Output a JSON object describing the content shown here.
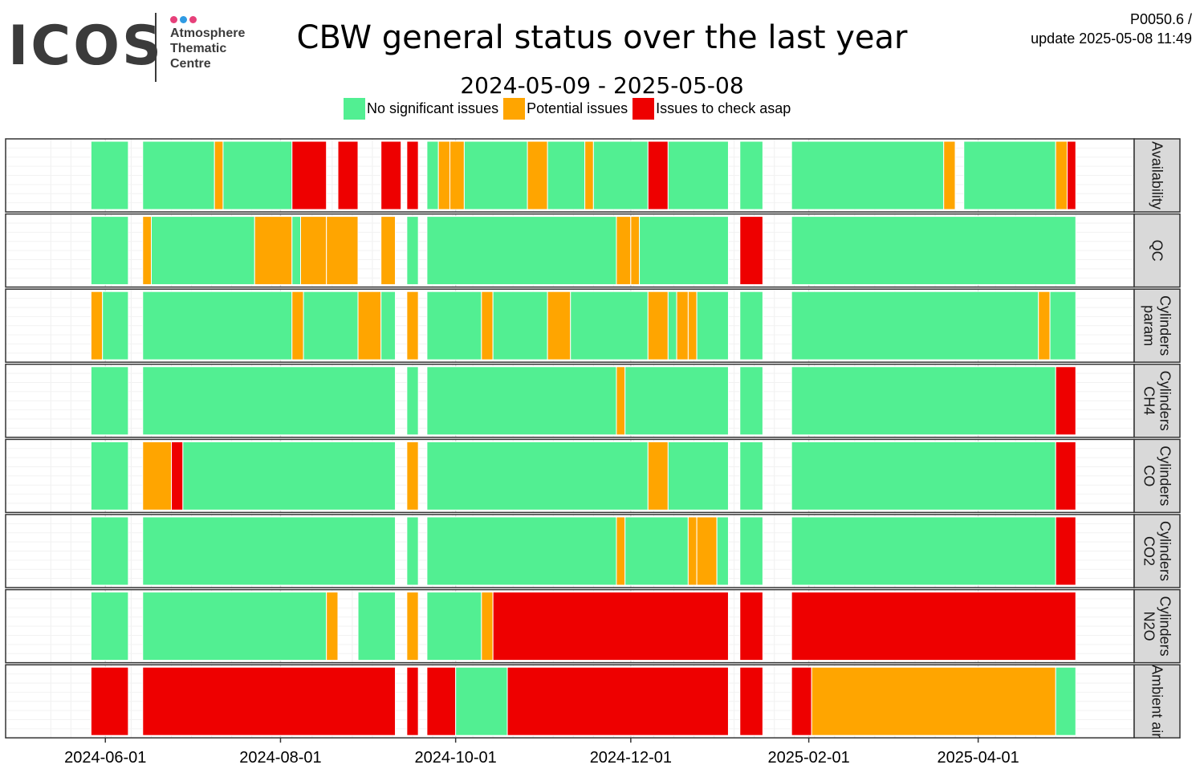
{
  "header": {
    "logo": {
      "word": "ICOS",
      "subtitle_lines": [
        "Atmosphere",
        "Thematic",
        "Centre"
      ],
      "dot_colors": [
        "#e6407a",
        "#2f9be3",
        "#e6407a"
      ]
    },
    "title": "CBW general status over the last year",
    "subtitle": "2024-05-09 - 2025-05-08",
    "version_line": "P0050.6 /",
    "update_line": "update  2025-05-08 11:49"
  },
  "chart_data": {
    "type": "heatmap",
    "title": "CBW general status over the last year",
    "subtitle": "2024-05-09 - 2025-05-08",
    "x_range": [
      "2024-05-09",
      "2025-05-08"
    ],
    "x_ticks": [
      "2024-06-01",
      "2024-08-01",
      "2024-10-01",
      "2024-12-01",
      "2025-02-01",
      "2025-04-01"
    ],
    "legend": {
      "placement": "top",
      "items": [
        {
          "key": "G",
          "label": "No significant issues",
          "color": "#52ef92"
        },
        {
          "key": "O",
          "label": "Potential issues",
          "color": "#ffa500"
        },
        {
          "key": "R",
          "label": "Issues to check asap",
          "color": "#ee0000"
        }
      ]
    },
    "facets": [
      {
        "label": [
          "Availability"
        ],
        "segments": [
          [
            "2024-05-27",
            "2024-06-09",
            "G"
          ],
          [
            "2024-06-14",
            "2024-07-09",
            "G"
          ],
          [
            "2024-07-09",
            "2024-07-12",
            "O"
          ],
          [
            "2024-07-12",
            "2024-08-05",
            "G"
          ],
          [
            "2024-08-05",
            "2024-08-17",
            "R"
          ],
          [
            "2024-08-21",
            "2024-08-28",
            "R"
          ],
          [
            "2024-09-05",
            "2024-09-12",
            "R"
          ],
          [
            "2024-09-14",
            "2024-09-18",
            "R"
          ],
          [
            "2024-09-21",
            "2024-09-25",
            "G"
          ],
          [
            "2024-09-25",
            "2024-09-29",
            "O"
          ],
          [
            "2024-09-29",
            "2024-10-04",
            "O"
          ],
          [
            "2024-10-04",
            "2024-10-26",
            "G"
          ],
          [
            "2024-10-26",
            "2024-11-02",
            "O"
          ],
          [
            "2024-11-02",
            "2024-11-15",
            "G"
          ],
          [
            "2024-11-15",
            "2024-11-18",
            "O"
          ],
          [
            "2024-11-18",
            "2024-12-07",
            "G"
          ],
          [
            "2024-12-07",
            "2024-12-14",
            "R"
          ],
          [
            "2024-12-14",
            "2025-01-04",
            "G"
          ],
          [
            "2025-01-08",
            "2025-01-16",
            "G"
          ],
          [
            "2025-01-26",
            "2025-03-20",
            "G"
          ],
          [
            "2025-03-20",
            "2025-03-24",
            "O"
          ],
          [
            "2025-03-27",
            "2025-04-28",
            "G"
          ],
          [
            "2025-04-28",
            "2025-05-02",
            "O"
          ],
          [
            "2025-05-02",
            "2025-05-05",
            "R"
          ]
        ]
      },
      {
        "label": [
          "QC"
        ],
        "segments": [
          [
            "2024-05-27",
            "2024-06-09",
            "G"
          ],
          [
            "2024-06-14",
            "2024-06-17",
            "O"
          ],
          [
            "2024-06-17",
            "2024-07-23",
            "G"
          ],
          [
            "2024-07-23",
            "2024-08-05",
            "O"
          ],
          [
            "2024-08-05",
            "2024-08-08",
            "G"
          ],
          [
            "2024-08-08",
            "2024-08-17",
            "O"
          ],
          [
            "2024-08-17",
            "2024-08-28",
            "O"
          ],
          [
            "2024-09-05",
            "2024-09-10",
            "O"
          ],
          [
            "2024-09-14",
            "2024-09-18",
            "G"
          ],
          [
            "2024-09-21",
            "2024-11-26",
            "G"
          ],
          [
            "2024-11-26",
            "2024-12-01",
            "O"
          ],
          [
            "2024-12-01",
            "2024-12-04",
            "O"
          ],
          [
            "2024-12-04",
            "2025-01-04",
            "G"
          ],
          [
            "2025-01-08",
            "2025-01-16",
            "R"
          ],
          [
            "2025-01-26",
            "2025-05-05",
            "G"
          ]
        ]
      },
      {
        "label": [
          "Cylinders",
          "param"
        ],
        "segments": [
          [
            "2024-05-27",
            "2024-05-31",
            "O"
          ],
          [
            "2024-05-31",
            "2024-06-09",
            "G"
          ],
          [
            "2024-06-14",
            "2024-08-05",
            "G"
          ],
          [
            "2024-08-05",
            "2024-08-09",
            "O"
          ],
          [
            "2024-08-09",
            "2024-08-28",
            "G"
          ],
          [
            "2024-08-28",
            "2024-09-05",
            "O"
          ],
          [
            "2024-09-05",
            "2024-09-10",
            "G"
          ],
          [
            "2024-09-14",
            "2024-09-18",
            "O"
          ],
          [
            "2024-09-21",
            "2024-10-10",
            "G"
          ],
          [
            "2024-10-10",
            "2024-10-14",
            "O"
          ],
          [
            "2024-10-14",
            "2024-11-02",
            "G"
          ],
          [
            "2024-11-02",
            "2024-11-10",
            "O"
          ],
          [
            "2024-11-10",
            "2024-12-07",
            "G"
          ],
          [
            "2024-12-07",
            "2024-12-14",
            "O"
          ],
          [
            "2024-12-14",
            "2024-12-17",
            "G"
          ],
          [
            "2024-12-17",
            "2024-12-21",
            "O"
          ],
          [
            "2024-12-21",
            "2024-12-24",
            "O"
          ],
          [
            "2024-12-24",
            "2025-01-04",
            "G"
          ],
          [
            "2025-01-08",
            "2025-01-16",
            "G"
          ],
          [
            "2025-01-26",
            "2025-04-22",
            "G"
          ],
          [
            "2025-04-22",
            "2025-04-26",
            "O"
          ],
          [
            "2025-04-26",
            "2025-05-05",
            "G"
          ]
        ]
      },
      {
        "label": [
          "Cylinders",
          "CH4"
        ],
        "segments": [
          [
            "2024-05-27",
            "2024-06-09",
            "G"
          ],
          [
            "2024-06-14",
            "2024-09-10",
            "G"
          ],
          [
            "2024-09-14",
            "2024-09-18",
            "G"
          ],
          [
            "2024-09-21",
            "2024-11-26",
            "G"
          ],
          [
            "2024-11-26",
            "2024-11-29",
            "O"
          ],
          [
            "2024-11-29",
            "2025-01-04",
            "G"
          ],
          [
            "2025-01-08",
            "2025-01-16",
            "G"
          ],
          [
            "2025-01-26",
            "2025-04-28",
            "G"
          ],
          [
            "2025-04-28",
            "2025-05-05",
            "R"
          ]
        ]
      },
      {
        "label": [
          "Cylinders",
          "CO"
        ],
        "segments": [
          [
            "2024-05-27",
            "2024-06-09",
            "G"
          ],
          [
            "2024-06-14",
            "2024-06-24",
            "O"
          ],
          [
            "2024-06-24",
            "2024-06-28",
            "R"
          ],
          [
            "2024-06-28",
            "2024-09-10",
            "G"
          ],
          [
            "2024-09-14",
            "2024-09-18",
            "O"
          ],
          [
            "2024-09-21",
            "2024-12-07",
            "G"
          ],
          [
            "2024-12-07",
            "2024-12-14",
            "O"
          ],
          [
            "2024-12-14",
            "2025-01-04",
            "G"
          ],
          [
            "2025-01-08",
            "2025-01-16",
            "G"
          ],
          [
            "2025-01-26",
            "2025-04-28",
            "G"
          ],
          [
            "2025-04-28",
            "2025-05-05",
            "R"
          ]
        ]
      },
      {
        "label": [
          "Cylinders",
          "CO2"
        ],
        "segments": [
          [
            "2024-05-27",
            "2024-06-09",
            "G"
          ],
          [
            "2024-06-14",
            "2024-09-10",
            "G"
          ],
          [
            "2024-09-14",
            "2024-09-18",
            "G"
          ],
          [
            "2024-09-21",
            "2024-11-26",
            "G"
          ],
          [
            "2024-11-26",
            "2024-11-29",
            "O"
          ],
          [
            "2024-11-29",
            "2024-12-21",
            "G"
          ],
          [
            "2024-12-21",
            "2024-12-24",
            "O"
          ],
          [
            "2024-12-24",
            "2024-12-31",
            "O"
          ],
          [
            "2024-12-31",
            "2025-01-04",
            "G"
          ],
          [
            "2025-01-08",
            "2025-01-16",
            "G"
          ],
          [
            "2025-01-26",
            "2025-04-28",
            "G"
          ],
          [
            "2025-04-28",
            "2025-05-05",
            "R"
          ]
        ]
      },
      {
        "label": [
          "Cylinders",
          "N2O"
        ],
        "segments": [
          [
            "2024-05-27",
            "2024-06-09",
            "G"
          ],
          [
            "2024-06-14",
            "2024-08-17",
            "G"
          ],
          [
            "2024-08-17",
            "2024-08-21",
            "O"
          ],
          [
            "2024-08-28",
            "2024-09-10",
            "G"
          ],
          [
            "2024-09-14",
            "2024-09-18",
            "O"
          ],
          [
            "2024-09-21",
            "2024-10-10",
            "G"
          ],
          [
            "2024-10-10",
            "2024-10-14",
            "O"
          ],
          [
            "2024-10-14",
            "2025-01-04",
            "R"
          ],
          [
            "2025-01-08",
            "2025-01-16",
            "R"
          ],
          [
            "2025-01-26",
            "2025-05-05",
            "R"
          ]
        ]
      },
      {
        "label": [
          "Ambient air"
        ],
        "segments": [
          [
            "2024-05-27",
            "2024-06-09",
            "R"
          ],
          [
            "2024-06-14",
            "2024-09-10",
            "R"
          ],
          [
            "2024-09-14",
            "2024-09-18",
            "R"
          ],
          [
            "2024-09-21",
            "2024-10-01",
            "R"
          ],
          [
            "2024-10-01",
            "2024-10-19",
            "G"
          ],
          [
            "2024-10-19",
            "2025-01-04",
            "R"
          ],
          [
            "2025-01-08",
            "2025-01-16",
            "R"
          ],
          [
            "2025-01-26",
            "2025-02-02",
            "R"
          ],
          [
            "2025-02-02",
            "2025-04-28",
            "O"
          ],
          [
            "2025-04-28",
            "2025-05-05",
            "G"
          ]
        ]
      }
    ]
  }
}
